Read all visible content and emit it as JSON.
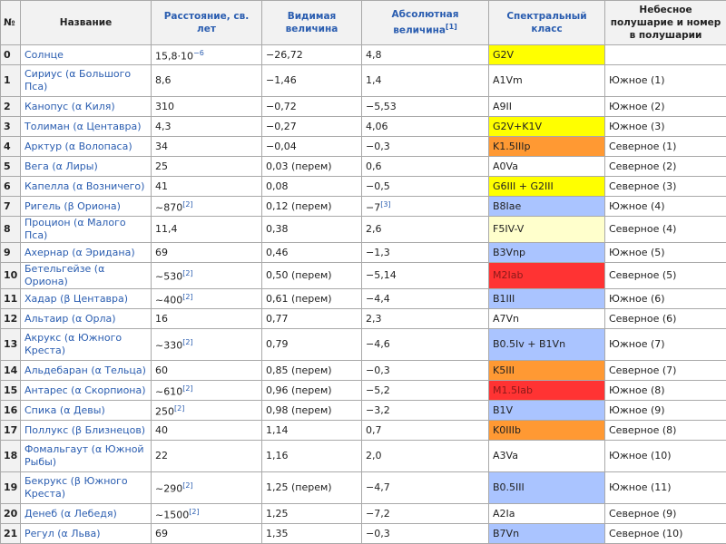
{
  "headers": {
    "num": "№",
    "name": "Название",
    "dist": "Расстояние, св. лет",
    "vis": "Видимая величина",
    "abs": "Абсолютная величина",
    "abs_ref": "[1]",
    "spec": "Спектральный класс",
    "hemi": "Небесное полушарие и номер в полушарии"
  },
  "colors": {
    "G": "#ffff00",
    "K": "#ff9933",
    "M": "#ff3333",
    "B": "#aac4ff",
    "A": "#ffffff",
    "F": "#ffffcc",
    "white": "#ffffff"
  },
  "rows": [
    {
      "num": "0",
      "name": "Солнце",
      "dist": "15,8·10",
      "dist_sup": "−6",
      "vis": "−26,72",
      "abs": "4,8",
      "abs_sup": "",
      "spec": "G2V",
      "spec_color": "#ffff00",
      "hemi": ""
    },
    {
      "num": "1",
      "name": "Сириус (α Большого Пса)",
      "dist": "8,6",
      "dist_sup": "",
      "vis": "−1,46",
      "abs": "1,4",
      "abs_sup": "",
      "spec": "A1Vm",
      "spec_color": "#ffffff",
      "hemi": "Южное (1)",
      "tall": true
    },
    {
      "num": "2",
      "name": "Канопус (α Киля)",
      "dist": "310",
      "dist_sup": "",
      "vis": "−0,72",
      "abs": "−5,53",
      "abs_sup": "",
      "spec": "A9II",
      "spec_color": "#ffffff",
      "hemi": "Южное (2)"
    },
    {
      "num": "3",
      "name": "Толиман (α Центавра)",
      "dist": "4,3",
      "dist_sup": "",
      "vis": "−0,27",
      "abs": "4,06",
      "abs_sup": "",
      "spec": "G2V+K1V",
      "spec_color": "#ffff00",
      "hemi": "Южное (3)"
    },
    {
      "num": "4",
      "name": "Арктур (α Волопаса)",
      "dist": "34",
      "dist_sup": "",
      "vis": "−0,04",
      "abs": "−0,3",
      "abs_sup": "",
      "spec": "K1.5IIIp",
      "spec_color": "#ff9933",
      "hemi": "Северное (1)"
    },
    {
      "num": "5",
      "name": "Вега (α Лиры)",
      "dist": "25",
      "dist_sup": "",
      "vis": "0,03 (перем)",
      "abs": "0,6",
      "abs_sup": "",
      "spec": "A0Va",
      "spec_color": "#ffffff",
      "hemi": "Северное (2)"
    },
    {
      "num": "6",
      "name": "Капелла (α Возничего)",
      "dist": "41",
      "dist_sup": "",
      "vis": "0,08",
      "abs": "−0,5",
      "abs_sup": "",
      "spec": "G6III + G2III",
      "spec_color": "#ffff00",
      "hemi": "Северное (3)"
    },
    {
      "num": "7",
      "name": "Ригель (β Ориона)",
      "dist": "~870",
      "dist_sup": "[2]",
      "vis": "0,12 (перем)",
      "abs": "−7",
      "abs_sup": "[3]",
      "spec": "B8Iae",
      "spec_color": "#aac4ff",
      "hemi": "Южное (4)"
    },
    {
      "num": "8",
      "name": "Процион (α Малого Пса)",
      "dist": "11,4",
      "dist_sup": "",
      "vis": "0,38",
      "abs": "2,6",
      "abs_sup": "",
      "spec": "F5IV-V",
      "spec_color": "#ffffcc",
      "hemi": "Северное (4)"
    },
    {
      "num": "9",
      "name": "Ахернар (α Эридана)",
      "dist": "69",
      "dist_sup": "",
      "vis": "0,46",
      "abs": "−1,3",
      "abs_sup": "",
      "spec": "B3Vnp",
      "spec_color": "#aac4ff",
      "hemi": "Южное (5)"
    },
    {
      "num": "10",
      "name": "Бетельгейзе (α Ориона)",
      "dist": "~530",
      "dist_sup": "[2]",
      "vis": "0,50 (перем)",
      "abs": "−5,14",
      "abs_sup": "",
      "spec": "M2Iab",
      "spec_color": "#ff3333",
      "hemi": "Северное (5)"
    },
    {
      "num": "11",
      "name": "Хадар (β Центавра)",
      "dist": "~400",
      "dist_sup": "[2]",
      "vis": "0,61 (перем)",
      "abs": "−4,4",
      "abs_sup": "",
      "spec": "B1III",
      "spec_color": "#aac4ff",
      "hemi": "Южное (6)"
    },
    {
      "num": "12",
      "name": "Альтаир (α Орла)",
      "dist": "16",
      "dist_sup": "",
      "vis": "0,77",
      "abs": "2,3",
      "abs_sup": "",
      "spec": "A7Vn",
      "spec_color": "#ffffff",
      "hemi": "Северное (6)"
    },
    {
      "num": "13",
      "name": "Акрукс (α Южного Креста)",
      "dist": "~330",
      "dist_sup": "[2]",
      "vis": "0,79",
      "abs": "−4,6",
      "abs_sup": "",
      "spec": "B0.5Iv + B1Vn",
      "spec_color": "#aac4ff",
      "hemi": "Южное (7)",
      "tall": true
    },
    {
      "num": "14",
      "name": "Альдебаран (α Тельца)",
      "dist": "60",
      "dist_sup": "",
      "vis": "0,85 (перем)",
      "abs": "−0,3",
      "abs_sup": "",
      "spec": "K5III",
      "spec_color": "#ff9933",
      "hemi": "Северное (7)"
    },
    {
      "num": "15",
      "name": "Антарес (α Скорпиона)",
      "dist": "~610",
      "dist_sup": "[2]",
      "vis": "0,96 (перем)",
      "abs": "−5,2",
      "abs_sup": "",
      "spec": "M1.5Iab",
      "spec_color": "#ff3333",
      "hemi": "Южное (8)"
    },
    {
      "num": "16",
      "name": "Спика (α Девы)",
      "dist": "250",
      "dist_sup": "[2]",
      "vis": "0,98 (перем)",
      "abs": "−3,2",
      "abs_sup": "",
      "spec": "B1V",
      "spec_color": "#aac4ff",
      "hemi": "Южное (9)"
    },
    {
      "num": "17",
      "name": "Поллукс (β Близнецов)",
      "dist": "40",
      "dist_sup": "",
      "vis": "1,14",
      "abs": "0,7",
      "abs_sup": "",
      "spec": "K0IIIb",
      "spec_color": "#ff9933",
      "hemi": "Северное (8)"
    },
    {
      "num": "18",
      "name": "Фомальгаут (α Южной Рыбы)",
      "dist": "22",
      "dist_sup": "",
      "vis": "1,16",
      "abs": "2,0",
      "abs_sup": "",
      "spec": "A3Va",
      "spec_color": "#ffffff",
      "hemi": "Южное (10)",
      "tall": true
    },
    {
      "num": "19",
      "name": "Бекрукс (β Южного Креста)",
      "dist": "~290",
      "dist_sup": "[2]",
      "vis": "1,25 (перем)",
      "abs": "−4,7",
      "abs_sup": "",
      "spec": "B0.5III",
      "spec_color": "#aac4ff",
      "hemi": "Южное (11)",
      "tall": true
    },
    {
      "num": "20",
      "name": "Денеб (α Лебедя)",
      "dist": "~1500",
      "dist_sup": "[2]",
      "vis": "1,25",
      "abs": "−7,2",
      "abs_sup": "",
      "spec": "A2Ia",
      "spec_color": "#ffffff",
      "hemi": "Северное (9)"
    },
    {
      "num": "21",
      "name": "Регул (α Льва)",
      "dist": "69",
      "dist_sup": "",
      "vis": "1,35",
      "abs": "−0,3",
      "abs_sup": "",
      "spec": "B7Vn",
      "spec_color": "#aac4ff",
      "hemi": "Северное (10)"
    }
  ]
}
